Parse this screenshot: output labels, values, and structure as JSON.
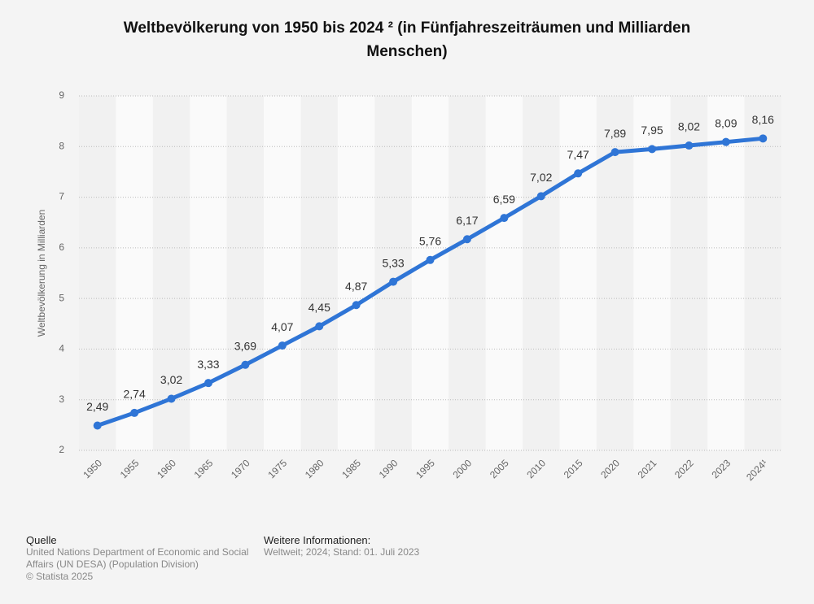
{
  "chart_data": {
    "type": "line",
    "title": "Weltbevölkerung von 1950 bis 2024 ² (in Fünfjahreszeiträumen und Milliarden Menschen)",
    "y_label": "Weltbevölkerung in Milliarden",
    "categories": [
      "1950",
      "1955",
      "1960",
      "1965",
      "1970",
      "1975",
      "1980",
      "1985",
      "1990",
      "1995",
      "2000",
      "2005",
      "2010",
      "2015",
      "2020",
      "2021",
      "2022",
      "2023",
      "2024¹"
    ],
    "values": [
      2.49,
      2.74,
      3.02,
      3.33,
      3.69,
      4.07,
      4.45,
      4.87,
      5.33,
      5.76,
      6.17,
      6.59,
      7.02,
      7.47,
      7.89,
      7.95,
      8.02,
      8.09,
      8.16
    ],
    "value_labels": [
      "2,49",
      "2,74",
      "3,02",
      "3,33",
      "3,69",
      "4,07",
      "4,45",
      "4,87",
      "5,33",
      "5,76",
      "6,17",
      "6,59",
      "7,02",
      "7,47",
      "7,89",
      "7,95",
      "8,02",
      "8,09",
      "8,16"
    ],
    "color": "#2f75d6",
    "ylim": [
      2,
      9
    ],
    "yticks": [
      2,
      3,
      4,
      5,
      6,
      7,
      8,
      9
    ],
    "grid": true
  },
  "source": {
    "heading": "Quelle",
    "text": "United Nations Department of Economic and Social Affairs (UN DESA) (Population Division)",
    "copyright": "© Statista 2025"
  },
  "info": {
    "heading": "Weitere Informationen:",
    "text": "Weltweit; 2024; Stand: 01. Juli 2023"
  }
}
